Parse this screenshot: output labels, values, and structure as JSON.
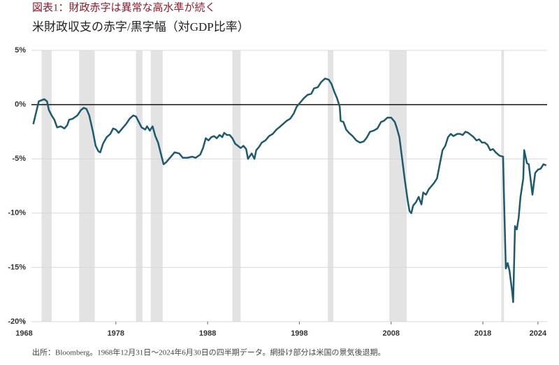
{
  "chart_data": {
    "type": "line",
    "title": "図表1：財政赤字は異常な高水準が続く",
    "subtitle": "米財政収支の赤字/黒字幅（対GDP比率）",
    "footnote": "出所：Bloomberg。1968年12月31日～2024年6月30日の四半期データ。網掛け部分は米国の景気後退期。",
    "xlim": [
      1968.8,
      2025.0
    ],
    "xticks": [
      1968,
      1978,
      1988,
      1998,
      2008,
      2018,
      2024
    ],
    "ylim": [
      -20,
      5
    ],
    "yticks": [
      {
        "value": 5,
        "label": "5%"
      },
      {
        "value": 0,
        "label": "0%"
      },
      {
        "value": -5,
        "label": "-5%"
      },
      {
        "value": -10,
        "label": "-10%"
      },
      {
        "value": -15,
        "label": "-15%"
      },
      {
        "value": -20,
        "label": "-20%"
      }
    ],
    "grid": true,
    "recession_color": "#e3e3e3",
    "recessions": [
      [
        1969.9,
        1971.0
      ],
      [
        1974.0,
        1975.7
      ],
      [
        1980.2,
        1980.9
      ],
      [
        1981.8,
        1983.1
      ],
      [
        1990.7,
        1991.6
      ],
      [
        2001.1,
        2001.7
      ],
      [
        2007.8,
        2009.7
      ],
      [
        2020.0,
        2020.3
      ]
    ],
    "series": [
      {
        "color": "#1d5a6d",
        "x": [
          1969.0,
          1969.6,
          1970.2,
          1970.5,
          1970.7,
          1971.0,
          1971.3,
          1971.6,
          1972.0,
          1972.4,
          1972.7,
          1972.9,
          1973.3,
          1973.8,
          1974.2,
          1974.5,
          1974.8,
          1975.1,
          1975.5,
          1975.8,
          1976.1,
          1976.3,
          1976.6,
          1977.0,
          1977.4,
          1977.7,
          1978.0,
          1978.3,
          1978.7,
          1979.1,
          1979.5,
          1979.9,
          1980.2,
          1980.5,
          1980.8,
          1981.2,
          1981.4,
          1981.7,
          1982.0,
          1982.3,
          1982.6,
          1982.9,
          1983.2,
          1983.5,
          1984.0,
          1984.4,
          1984.9,
          1985.3,
          1985.8,
          1986.3,
          1986.7,
          1987.2,
          1987.5,
          1987.8,
          1988.1,
          1988.4,
          1988.7,
          1989.0,
          1989.3,
          1989.6,
          1989.8,
          1990.1,
          1990.4,
          1990.7,
          1991.0,
          1991.3,
          1991.6,
          1991.9,
          1992.2,
          1992.4,
          1992.8,
          1993.1,
          1993.3,
          1993.6,
          1993.9,
          1994.3,
          1994.7,
          1995.1,
          1995.5,
          1995.8,
          1996.2,
          1996.6,
          1997.0,
          1997.4,
          1997.7,
          1998.1,
          1998.5,
          1998.9,
          1999.3,
          1999.6,
          2000.0,
          2000.4,
          2000.8,
          2001.2,
          2001.5,
          2001.8,
          2002.1,
          2002.4,
          2002.5,
          2002.8,
          2003.1,
          2003.4,
          2003.8,
          2004.2,
          2004.6,
          2005.0,
          2005.3,
          2005.7,
          2006.1,
          2006.5,
          2006.9,
          2007.2,
          2007.6,
          2008.0,
          2008.4,
          2008.6,
          2008.9,
          2009.2,
          2009.5,
          2009.8,
          2010.0,
          2010.2,
          2010.4,
          2010.7,
          2011.0,
          2011.3,
          2011.5,
          2011.8,
          2012.1,
          2012.4,
          2012.7,
          2013.0,
          2013.3,
          2013.6,
          2013.9,
          2014.2,
          2014.5,
          2014.8,
          2015.2,
          2015.5,
          2015.8,
          2016.1,
          2016.4,
          2016.7,
          2017.0,
          2017.3,
          2017.6,
          2017.9,
          2018.2,
          2018.5,
          2018.8,
          2019.1,
          2019.4,
          2019.8,
          2020.2,
          2020.3,
          2020.5,
          2020.7,
          2020.9,
          2021.2,
          2021.3,
          2021.5,
          2021.7,
          2021.9,
          2022.1,
          2022.4,
          2022.5,
          2022.8,
          2023.0,
          2023.2,
          2023.4,
          2023.7,
          2024.0,
          2024.3,
          2024.6,
          2024.9
        ],
        "values": [
          -1.8,
          0.3,
          0.5,
          0.3,
          -0.5,
          -1.0,
          -1.4,
          -2.1,
          -2.0,
          -2.2,
          -1.9,
          -1.4,
          -1.3,
          -1.0,
          -0.5,
          -0.3,
          -0.4,
          -1.0,
          -2.5,
          -3.8,
          -4.3,
          -4.4,
          -3.6,
          -3.0,
          -2.7,
          -2.2,
          -2.3,
          -2.6,
          -2.2,
          -1.8,
          -1.3,
          -1.0,
          -1.1,
          -1.6,
          -2.1,
          -2.3,
          -2.0,
          -2.4,
          -2.0,
          -2.9,
          -3.5,
          -4.5,
          -5.5,
          -5.3,
          -4.8,
          -4.4,
          -4.5,
          -4.9,
          -4.9,
          -4.8,
          -4.9,
          -4.6,
          -4.0,
          -3.1,
          -3.3,
          -3.0,
          -2.9,
          -3.1,
          -2.8,
          -3.0,
          -2.6,
          -2.8,
          -2.8,
          -3.1,
          -3.6,
          -3.8,
          -4.0,
          -3.8,
          -4.1,
          -5.0,
          -4.5,
          -5.0,
          -4.2,
          -3.9,
          -3.5,
          -3.3,
          -2.9,
          -2.7,
          -2.3,
          -2.1,
          -1.8,
          -1.5,
          -1.3,
          -0.8,
          -0.2,
          0.2,
          0.6,
          0.9,
          1.0,
          1.5,
          1.6,
          2.1,
          2.4,
          2.3,
          1.9,
          1.2,
          0.6,
          -0.2,
          -1.5,
          -1.6,
          -2.3,
          -2.6,
          -2.9,
          -3.3,
          -3.5,
          -3.4,
          -3.1,
          -2.5,
          -2.4,
          -2.2,
          -1.6,
          -1.5,
          -1.2,
          -1.2,
          -1.6,
          -2.1,
          -3.0,
          -5.0,
          -7.0,
          -8.8,
          -9.8,
          -10.0,
          -9.3,
          -9.0,
          -8.5,
          -9.2,
          -8.1,
          -8.3,
          -7.8,
          -7.5,
          -7.2,
          -6.8,
          -5.5,
          -4.2,
          -3.8,
          -3.0,
          -2.7,
          -2.9,
          -2.7,
          -2.7,
          -2.8,
          -2.5,
          -2.6,
          -2.8,
          -3.0,
          -3.3,
          -3.2,
          -3.5,
          -3.5,
          -3.7,
          -4.2,
          -4.1,
          -4.4,
          -4.7,
          -4.8,
          -8.5,
          -15.1,
          -14.6,
          -15.3,
          -17.3,
          -18.2,
          -11.2,
          -11.5,
          -10.4,
          -8.5,
          -6.8,
          -4.2,
          -5.4,
          -5.5,
          -6.9,
          -8.3,
          -6.3,
          -6.0,
          -5.9,
          -5.5,
          -5.6
        ]
      }
    ]
  }
}
